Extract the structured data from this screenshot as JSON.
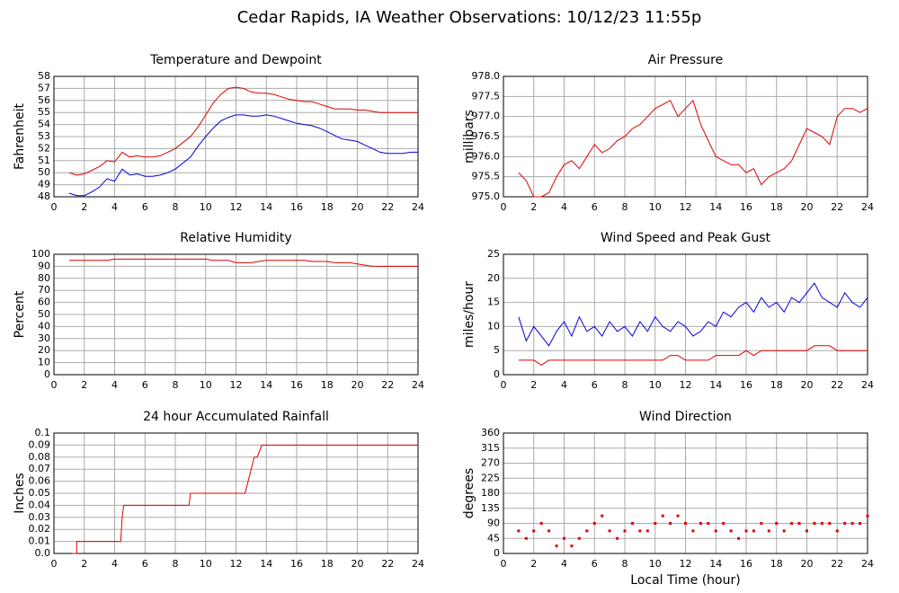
{
  "title": "Cedar Rapids, IA Weather Observations: 10/12/23 11:55p",
  "chart_data": [
    {
      "type": "line",
      "title": "Temperature and Dewpoint",
      "y_label": "Fahrenheit",
      "x": [
        1,
        1.5,
        2,
        2.5,
        3,
        3.5,
        4,
        4.5,
        5,
        5.5,
        6,
        6.5,
        7,
        7.5,
        8,
        8.5,
        9,
        9.5,
        10,
        10.5,
        11,
        11.5,
        12,
        12.5,
        13,
        13.5,
        14,
        14.5,
        15,
        15.5,
        16,
        16.5,
        17,
        17.5,
        18,
        18.5,
        19,
        19.5,
        20,
        20.5,
        21,
        21.5,
        22,
        22.5,
        23,
        23.5,
        24
      ],
      "series": [
        {
          "color": "#e00000",
          "values": [
            50.0,
            49.8,
            49.9,
            50.2,
            50.5,
            51.0,
            50.9,
            51.7,
            51.3,
            51.4,
            51.3,
            51.3,
            51.4,
            51.7,
            52.0,
            52.5,
            53.0,
            53.8,
            54.8,
            55.8,
            56.5,
            57.0,
            57.1,
            57.0,
            56.7,
            56.6,
            56.6,
            56.5,
            56.3,
            56.1,
            56.0,
            55.9,
            55.9,
            55.7,
            55.5,
            55.3,
            55.3,
            55.3,
            55.2,
            55.2,
            55.1,
            55.0,
            55.0,
            55.0,
            55.0,
            55.0,
            55.0
          ]
        },
        {
          "color": "#0000e0",
          "values": [
            48.3,
            48.1,
            48.1,
            48.4,
            48.8,
            49.5,
            49.3,
            50.3,
            49.8,
            49.9,
            49.7,
            49.7,
            49.8,
            50.0,
            50.3,
            50.8,
            51.3,
            52.2,
            53.0,
            53.7,
            54.3,
            54.6,
            54.8,
            54.8,
            54.7,
            54.7,
            54.8,
            54.7,
            54.5,
            54.3,
            54.1,
            54.0,
            53.9,
            53.7,
            53.4,
            53.1,
            52.8,
            52.7,
            52.6,
            52.3,
            52.0,
            51.7,
            51.6,
            51.6,
            51.6,
            51.7,
            51.7
          ]
        }
      ],
      "xlim": [
        0,
        24
      ],
      "xticks": [
        0,
        2,
        4,
        6,
        8,
        10,
        12,
        14,
        16,
        18,
        20,
        22,
        24
      ],
      "ylim": [
        48,
        58
      ],
      "yticks": [
        48,
        49,
        50,
        51,
        52,
        53,
        54,
        55,
        56,
        57,
        58
      ],
      "grid": true
    },
    {
      "type": "line",
      "title": "Air Pressure",
      "y_label": "millibars",
      "x": [
        1,
        1.5,
        2,
        2.5,
        3,
        3.5,
        4,
        4.5,
        5,
        5.5,
        6,
        6.5,
        7,
        7.5,
        8,
        8.5,
        9,
        9.5,
        10,
        10.5,
        11,
        11.5,
        12,
        12.5,
        13,
        13.5,
        14,
        14.5,
        15,
        15.5,
        16,
        16.5,
        17,
        17.5,
        18,
        18.5,
        19,
        19.5,
        20,
        20.5,
        21,
        21.5,
        22,
        22.5,
        23,
        23.5,
        24
      ],
      "series": [
        {
          "color": "#e00000",
          "values": [
            975.6,
            975.4,
            975.0,
            975.0,
            975.1,
            975.5,
            975.8,
            975.9,
            975.7,
            976.0,
            976.3,
            976.1,
            976.2,
            976.4,
            976.5,
            976.7,
            976.8,
            977.0,
            977.2,
            977.3,
            977.4,
            977.0,
            977.2,
            977.4,
            976.8,
            976.4,
            976.0,
            975.9,
            975.8,
            975.8,
            975.6,
            975.7,
            975.3,
            975.5,
            975.6,
            975.7,
            975.9,
            976.3,
            976.7,
            976.6,
            976.5,
            976.3,
            977.0,
            977.2,
            977.2,
            977.1,
            977.2
          ]
        }
      ],
      "xlim": [
        0,
        24
      ],
      "xticks": [
        0,
        2,
        4,
        6,
        8,
        10,
        12,
        14,
        16,
        18,
        20,
        22,
        24
      ],
      "ylim": [
        975,
        978
      ],
      "yticks": [
        {
          "value": 975,
          "label": "975.0"
        },
        975.5,
        {
          "value": 976,
          "label": "976.0"
        },
        976.5,
        {
          "value": 977,
          "label": "977.0"
        },
        977.5,
        {
          "value": 978,
          "label": "978.0"
        }
      ],
      "grid": true
    },
    {
      "type": "line",
      "title": "Relative Humidity",
      "y_label": "Percent",
      "x": [
        1,
        1.5,
        2,
        2.5,
        3,
        3.5,
        4,
        4.5,
        5,
        5.5,
        6,
        6.5,
        7,
        7.5,
        8,
        8.5,
        9,
        9.5,
        10,
        10.5,
        11,
        11.5,
        12,
        12.5,
        13,
        13.5,
        14,
        14.5,
        15,
        15.5,
        16,
        16.5,
        17,
        17.5,
        18,
        18.5,
        19,
        19.5,
        20,
        20.5,
        21,
        21.5,
        22,
        22.5,
        23,
        23.5,
        24
      ],
      "series": [
        {
          "color": "#e00000",
          "values": [
            95,
            95,
            95,
            95,
            95,
            95,
            96,
            96,
            96,
            96,
            96,
            96,
            96,
            96,
            96,
            96,
            96,
            96,
            96,
            95,
            95,
            95,
            93,
            93,
            93,
            94,
            95,
            95,
            95,
            95,
            95,
            95,
            94,
            94,
            94,
            93,
            93,
            93,
            92,
            91,
            90,
            90,
            90,
            90,
            90,
            90,
            90
          ]
        }
      ],
      "xlim": [
        0,
        24
      ],
      "xticks": [
        0,
        2,
        4,
        6,
        8,
        10,
        12,
        14,
        16,
        18,
        20,
        22,
        24
      ],
      "ylim": [
        0,
        100
      ],
      "yticks": [
        0,
        10,
        20,
        30,
        40,
        50,
        60,
        70,
        80,
        90,
        100
      ],
      "grid": true
    },
    {
      "type": "line",
      "title": "Wind Speed and Peak Gust",
      "y_label": "miles/hour",
      "x": [
        1,
        1.5,
        2,
        2.5,
        3,
        3.5,
        4,
        4.5,
        5,
        5.5,
        6,
        6.5,
        7,
        7.5,
        8,
        8.5,
        9,
        9.5,
        10,
        10.5,
        11,
        11.5,
        12,
        12.5,
        13,
        13.5,
        14,
        14.5,
        15,
        15.5,
        16,
        16.5,
        17,
        17.5,
        18,
        18.5,
        19,
        19.5,
        20,
        20.5,
        21,
        21.5,
        22,
        22.5,
        23,
        23.5,
        24
      ],
      "series": [
        {
          "color": "#0000e0",
          "values": [
            12,
            7,
            10,
            8,
            6,
            9,
            11,
            8,
            12,
            9,
            10,
            8,
            11,
            9,
            10,
            8,
            11,
            9,
            12,
            10,
            9,
            11,
            10,
            8,
            9,
            11,
            10,
            13,
            12,
            14,
            15,
            13,
            16,
            14,
            15,
            13,
            16,
            15,
            17,
            19,
            16,
            15,
            14,
            17,
            15,
            14,
            16
          ]
        },
        {
          "color": "#e00000",
          "values": [
            3,
            3,
            3,
            2,
            3,
            3,
            3,
            3,
            3,
            3,
            3,
            3,
            3,
            3,
            3,
            3,
            3,
            3,
            3,
            3,
            4,
            4,
            3,
            3,
            3,
            3,
            4,
            4,
            4,
            4,
            5,
            4,
            5,
            5,
            5,
            5,
            5,
            5,
            5,
            6,
            6,
            6,
            5,
            5,
            5,
            5,
            5
          ]
        }
      ],
      "xlim": [
        0,
        24
      ],
      "xticks": [
        0,
        2,
        4,
        6,
        8,
        10,
        12,
        14,
        16,
        18,
        20,
        22,
        24
      ],
      "ylim": [
        0,
        25
      ],
      "yticks": [
        0,
        5,
        10,
        15,
        20,
        25
      ],
      "grid": true
    },
    {
      "type": "line",
      "title": "24 hour Accumulated Rainfall",
      "y_label": "Inches",
      "x": [
        1.2,
        1.5,
        1.5,
        4.4,
        4.5,
        4.6,
        4.7,
        8.9,
        9.0,
        12.6,
        12.8,
        13.0,
        13.2,
        13.4,
        13.7,
        24
      ],
      "series": [
        {
          "color": "#e00000",
          "values": [
            0,
            0,
            0.01,
            0.01,
            0.03,
            0.04,
            0.04,
            0.04,
            0.05,
            0.05,
            0.06,
            0.07,
            0.08,
            0.08,
            0.09,
            0.09
          ]
        }
      ],
      "xlim": [
        0,
        24
      ],
      "xticks": [
        0,
        2,
        4,
        6,
        8,
        10,
        12,
        14,
        16,
        18,
        20,
        22,
        24
      ],
      "ylim": [
        0,
        0.1
      ],
      "yticks": [
        {
          "value": 0,
          "label": "0.0"
        },
        0.01,
        0.02,
        0.03,
        0.04,
        0.05,
        0.06,
        0.07,
        0.08,
        0.09,
        0.1
      ],
      "grid": true
    },
    {
      "type": "scatter",
      "title": "Wind Direction",
      "y_label": "degrees",
      "x_label": "Local Time (hour)",
      "x": [
        1,
        1.5,
        2,
        2.5,
        3,
        3.5,
        4,
        4.5,
        5,
        5.5,
        6,
        6.5,
        7,
        7.5,
        8,
        8.5,
        9,
        9.5,
        10,
        10.5,
        11,
        11.5,
        12,
        12.5,
        13,
        13.5,
        14,
        14.5,
        15,
        15.5,
        16,
        16.5,
        17,
        17.5,
        18,
        18.5,
        19,
        19.5,
        20,
        20.5,
        21,
        21.5,
        22,
        22.5,
        23,
        23.5,
        24
      ],
      "series": [
        {
          "color": "#e00000",
          "values": [
            67.5,
            45,
            67.5,
            90,
            67.5,
            22.5,
            45,
            22.5,
            45,
            67.5,
            90,
            112.5,
            67.5,
            45,
            67.5,
            90,
            67.5,
            67.5,
            90,
            112.5,
            90,
            112.5,
            90,
            67.5,
            90,
            90,
            67.5,
            90,
            67.5,
            45,
            67.5,
            67.5,
            90,
            67.5,
            90,
            67.5,
            90,
            90,
            67.5,
            90,
            90,
            90,
            67.5,
            90,
            90,
            90,
            112.5
          ]
        }
      ],
      "xlim": [
        0,
        24
      ],
      "xticks": [
        0,
        2,
        4,
        6,
        8,
        10,
        12,
        14,
        16,
        18,
        20,
        22,
        24
      ],
      "ylim": [
        0,
        360
      ],
      "yticks": [
        0,
        45,
        90,
        135,
        180,
        225,
        270,
        315,
        360
      ],
      "grid": true
    }
  ]
}
